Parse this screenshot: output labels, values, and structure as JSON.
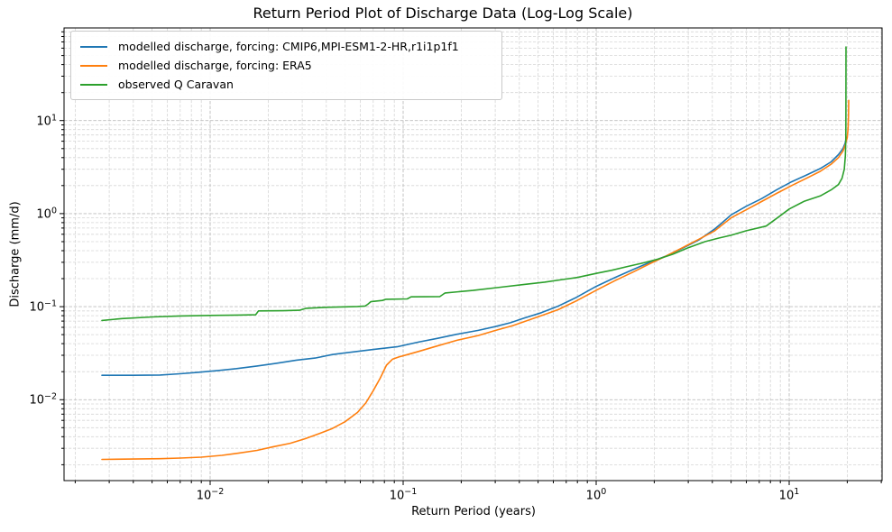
{
  "chart_data": {
    "type": "line",
    "title": "Return Period Plot of Discharge Data (Log-Log Scale)",
    "xlabel": "Return Period (years)",
    "ylabel": "Discharge (mm/d)",
    "x_scale": "log",
    "y_scale": "log",
    "xlim": [
      0.00175,
      30.3
    ],
    "ylim": [
      0.00135,
      99
    ],
    "grid": {
      "visible": true,
      "which": "both",
      "linestyle": "dashed"
    },
    "legend_position": "upper left",
    "x_ticks": [
      {
        "v": 0.01,
        "base": "10",
        "exp": "−2"
      },
      {
        "v": 0.1,
        "base": "10",
        "exp": "−1"
      },
      {
        "v": 1,
        "base": "10",
        "exp": "0"
      },
      {
        "v": 10,
        "base": "10",
        "exp": "1"
      }
    ],
    "y_ticks": [
      {
        "v": 0.01,
        "base": "10",
        "exp": "−2"
      },
      {
        "v": 0.1,
        "base": "10",
        "exp": "−1"
      },
      {
        "v": 1,
        "base": "10",
        "exp": "0"
      },
      {
        "v": 10,
        "base": "10",
        "exp": "1"
      }
    ],
    "series": [
      {
        "name": "modelled discharge, forcing: CMIP6,MPI-ESM1-2-HR,r1i1p1f1",
        "color": "#1f77b4",
        "points": [
          [
            0.00275,
            0.0183
          ],
          [
            0.004,
            0.0183
          ],
          [
            0.0055,
            0.0184
          ],
          [
            0.007,
            0.019
          ],
          [
            0.0085,
            0.0196
          ],
          [
            0.011,
            0.0206
          ],
          [
            0.0137,
            0.0216
          ],
          [
            0.0175,
            0.023
          ],
          [
            0.022,
            0.0246
          ],
          [
            0.028,
            0.0266
          ],
          [
            0.035,
            0.028
          ],
          [
            0.043,
            0.0306
          ],
          [
            0.055,
            0.0326
          ],
          [
            0.07,
            0.0346
          ],
          [
            0.093,
            0.037
          ],
          [
            0.12,
            0.0416
          ],
          [
            0.15,
            0.0456
          ],
          [
            0.19,
            0.0505
          ],
          [
            0.245,
            0.0556
          ],
          [
            0.3,
            0.061
          ],
          [
            0.36,
            0.0672
          ],
          [
            0.42,
            0.075
          ],
          [
            0.52,
            0.086
          ],
          [
            0.64,
            0.102
          ],
          [
            0.78,
            0.124
          ],
          [
            1.0,
            0.165
          ],
          [
            1.25,
            0.205
          ],
          [
            1.55,
            0.25
          ],
          [
            1.9,
            0.3
          ],
          [
            2.3,
            0.35
          ],
          [
            2.8,
            0.425
          ],
          [
            3.4,
            0.52
          ],
          [
            4.1,
            0.68
          ],
          [
            4.5,
            0.8
          ],
          [
            5.0,
            0.97
          ],
          [
            6.0,
            1.2
          ],
          [
            7.2,
            1.45
          ],
          [
            8.6,
            1.8
          ],
          [
            10.3,
            2.2
          ],
          [
            12.3,
            2.6
          ],
          [
            14.5,
            3.05
          ],
          [
            16.5,
            3.6
          ],
          [
            18.0,
            4.3
          ],
          [
            19.0,
            5.0
          ],
          [
            19.5,
            5.7
          ],
          [
            19.8,
            6.6
          ]
        ]
      },
      {
        "name": "modelled discharge, forcing: ERA5",
        "color": "#ff7f0e",
        "points": [
          [
            0.00275,
            0.00228
          ],
          [
            0.004,
            0.0023
          ],
          [
            0.0055,
            0.00232
          ],
          [
            0.007,
            0.00236
          ],
          [
            0.009,
            0.00241
          ],
          [
            0.0115,
            0.00252
          ],
          [
            0.014,
            0.00266
          ],
          [
            0.0175,
            0.00285
          ],
          [
            0.021,
            0.0031
          ],
          [
            0.026,
            0.0034
          ],
          [
            0.031,
            0.0038
          ],
          [
            0.037,
            0.00435
          ],
          [
            0.043,
            0.0049
          ],
          [
            0.05,
            0.0058
          ],
          [
            0.058,
            0.0073
          ],
          [
            0.064,
            0.0092
          ],
          [
            0.07,
            0.0125
          ],
          [
            0.076,
            0.017
          ],
          [
            0.082,
            0.0235
          ],
          [
            0.088,
            0.0272
          ],
          [
            0.095,
            0.0288
          ],
          [
            0.105,
            0.0305
          ],
          [
            0.12,
            0.033
          ],
          [
            0.15,
            0.0378
          ],
          [
            0.19,
            0.0435
          ],
          [
            0.245,
            0.049
          ],
          [
            0.3,
            0.0555
          ],
          [
            0.37,
            0.0625
          ],
          [
            0.45,
            0.072
          ],
          [
            0.55,
            0.0835
          ],
          [
            0.64,
            0.0935
          ],
          [
            0.8,
            0.117
          ],
          [
            1.0,
            0.15
          ],
          [
            1.25,
            0.19
          ],
          [
            1.55,
            0.235
          ],
          [
            1.9,
            0.29
          ],
          [
            2.3,
            0.35
          ],
          [
            2.8,
            0.43
          ],
          [
            3.4,
            0.53
          ],
          [
            4.1,
            0.65
          ],
          [
            5.0,
            0.9
          ],
          [
            6.0,
            1.1
          ],
          [
            7.2,
            1.35
          ],
          [
            8.6,
            1.65
          ],
          [
            10.3,
            2.0
          ],
          [
            12.3,
            2.4
          ],
          [
            14.5,
            2.85
          ],
          [
            16.5,
            3.4
          ],
          [
            18.0,
            4.0
          ],
          [
            19.0,
            4.7
          ],
          [
            19.6,
            5.6
          ],
          [
            20.0,
            6.6
          ],
          [
            20.2,
            8.2
          ],
          [
            20.3,
            11.5
          ],
          [
            20.35,
            16.5
          ]
        ]
      },
      {
        "name": "observed Q Caravan",
        "color": "#2ca02c",
        "points": [
          [
            0.00275,
            0.071
          ],
          [
            0.0035,
            0.0745
          ],
          [
            0.005,
            0.0775
          ],
          [
            0.007,
            0.0795
          ],
          [
            0.01,
            0.0805
          ],
          [
            0.014,
            0.0812
          ],
          [
            0.0172,
            0.0818
          ],
          [
            0.0178,
            0.09
          ],
          [
            0.024,
            0.0905
          ],
          [
            0.029,
            0.0915
          ],
          [
            0.0315,
            0.096
          ],
          [
            0.04,
            0.0985
          ],
          [
            0.05,
            0.0995
          ],
          [
            0.058,
            0.1005
          ],
          [
            0.0635,
            0.1015
          ],
          [
            0.0655,
            0.106
          ],
          [
            0.068,
            0.113
          ],
          [
            0.078,
            0.1165
          ],
          [
            0.0815,
            0.12
          ],
          [
            0.105,
            0.121
          ],
          [
            0.11,
            0.1275
          ],
          [
            0.155,
            0.1285
          ],
          [
            0.165,
            0.1405
          ],
          [
            0.23,
            0.1495
          ],
          [
            0.32,
            0.162
          ],
          [
            0.43,
            0.174
          ],
          [
            0.54,
            0.1835
          ],
          [
            0.67,
            0.1955
          ],
          [
            0.8,
            0.206
          ],
          [
            1.0,
            0.228
          ],
          [
            1.2,
            0.2455
          ],
          [
            1.45,
            0.27
          ],
          [
            1.75,
            0.295
          ],
          [
            2.1,
            0.325
          ],
          [
            2.5,
            0.366
          ],
          [
            3.0,
            0.43
          ],
          [
            3.66,
            0.5
          ],
          [
            4.3,
            0.545
          ],
          [
            5.0,
            0.585
          ],
          [
            6.0,
            0.655
          ],
          [
            7.6,
            0.735
          ],
          [
            9.0,
            0.95
          ],
          [
            10.0,
            1.12
          ],
          [
            12.0,
            1.36
          ],
          [
            14.5,
            1.55
          ],
          [
            16.5,
            1.8
          ],
          [
            18.0,
            2.05
          ],
          [
            18.8,
            2.4
          ],
          [
            19.3,
            3.0
          ],
          [
            19.55,
            4.2
          ],
          [
            19.65,
            6.5
          ],
          [
            19.68,
            12.0
          ],
          [
            19.7,
            62.0
          ]
        ]
      }
    ]
  }
}
